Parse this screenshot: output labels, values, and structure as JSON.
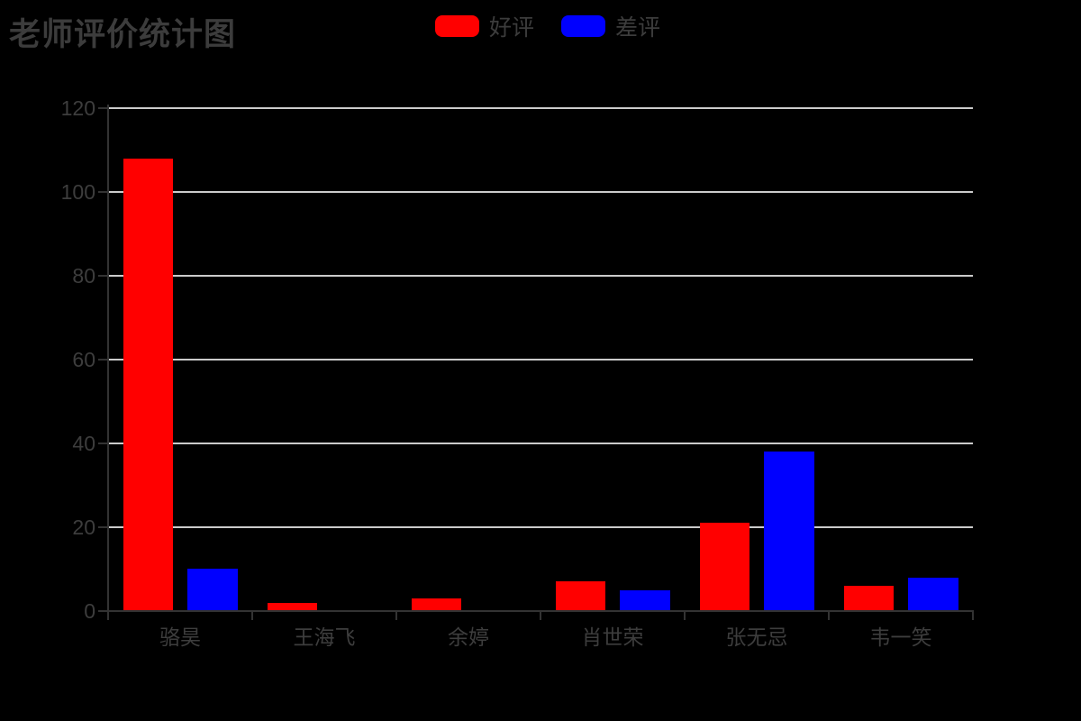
{
  "title": "老师评价统计图",
  "colors": {
    "background": "#000000",
    "title_text": "#3c3c3c",
    "tick_label": "#3d3d3d",
    "axis_line": "#333333",
    "gridline": "#cbcbcb",
    "good": "#ff0000",
    "bad": "#0000ff"
  },
  "legend": {
    "items": [
      {
        "key": "good",
        "label": "好评",
        "color": "#ff0000"
      },
      {
        "key": "bad",
        "label": "差评",
        "color": "#0000ff"
      }
    ]
  },
  "chart_data": {
    "type": "bar",
    "title": "老师评价统计图",
    "categories": [
      "骆昊",
      "王海飞",
      "余婷",
      "肖世荣",
      "张无忌",
      "韦一笑"
    ],
    "series": [
      {
        "key": "good",
        "name": "好评",
        "color": "#ff0000",
        "values": [
          108,
          2,
          3,
          7,
          21,
          6
        ]
      },
      {
        "key": "bad",
        "name": "差评",
        "color": "#0000ff",
        "values": [
          10,
          0,
          0,
          5,
          38,
          8
        ]
      }
    ],
    "xlabel": "",
    "ylabel": "",
    "ylim": [
      0,
      120
    ],
    "yticks": [
      0,
      20,
      40,
      60,
      80,
      100,
      120
    ],
    "grid": true,
    "legend_position": "top-center",
    "background": "black"
  }
}
